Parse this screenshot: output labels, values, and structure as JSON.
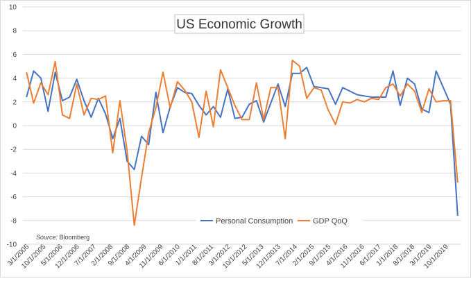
{
  "chart_data": {
    "type": "line",
    "title": "US Economic Growth",
    "source_label": "Source:",
    "source_value": "Bloomberg",
    "ylim": [
      -10,
      10
    ],
    "yticks": [
      -10,
      -8,
      -6,
      -4,
      -2,
      0,
      2,
      4,
      6,
      8,
      10
    ],
    "grid": "horizontal",
    "legend_position": "bottom-center",
    "x_start": "3/1/2005",
    "x_labels": [
      "3/1/2005",
      "10/1/2005",
      "5/1/2006",
      "12/1/2006",
      "7/1/2007",
      "2/1/2008",
      "9/1/2008",
      "4/1/2009",
      "11/1/2009",
      "6/1/2010",
      "1/1/2011",
      "8/1/2011",
      "3/1/2012",
      "10/1/2012",
      "5/1/2013",
      "12/1/2013",
      "7/1/2014",
      "2/1/2015",
      "9/1/2015",
      "4/1/2016",
      "11/1/2016",
      "6/1/2017",
      "1/1/2018",
      "8/1/2018",
      "3/1/2019",
      "10/1/2019"
    ],
    "series": [
      {
        "name": "Personal Consumption",
        "color": "#4472C4",
        "values": [
          2.4,
          4.6,
          4.0,
          1.2,
          4.5,
          2.1,
          2.4,
          3.9,
          2.1,
          0.7,
          2.3,
          1.0,
          -1.1,
          0.6,
          -3.0,
          -3.7,
          -0.9,
          -1.6,
          2.8,
          -0.6,
          1.6,
          3.2,
          2.8,
          2.7,
          1.7,
          0.9,
          1.6,
          0.7,
          3.1,
          0.6,
          0.7,
          1.8,
          2.1,
          0.3,
          1.9,
          3.5,
          1.6,
          4.4,
          4.4,
          4.9,
          3.3,
          3.2,
          3.1,
          1.8,
          3.2,
          2.9,
          2.6,
          2.5,
          2.4,
          2.4,
          2.4,
          4.6,
          1.7,
          4.0,
          3.5,
          1.4,
          1.1,
          4.6,
          3.2,
          1.8,
          -7.6
        ]
      },
      {
        "name": "GDP QoQ",
        "color": "#ED7D31",
        "values": [
          4.5,
          1.9,
          3.6,
          2.6,
          5.4,
          0.9,
          0.6,
          3.5,
          0.9,
          2.3,
          2.2,
          2.5,
          -2.3,
          2.1,
          -2.1,
          -8.4,
          -4.4,
          -0.6,
          1.5,
          4.5,
          1.5,
          3.7,
          3.0,
          2.0,
          -1.0,
          2.9,
          -0.1,
          4.7,
          3.2,
          1.7,
          0.5,
          0.5,
          3.6,
          0.5,
          3.2,
          3.2,
          -1.1,
          5.5,
          5.0,
          2.3,
          3.2,
          3.0,
          1.3,
          0.1,
          2.0,
          1.9,
          2.2,
          2.0,
          2.3,
          2.2,
          3.2,
          3.5,
          2.5,
          3.5,
          2.9,
          1.1,
          3.1,
          2.0,
          2.1,
          2.1,
          -4.8
        ]
      }
    ]
  }
}
